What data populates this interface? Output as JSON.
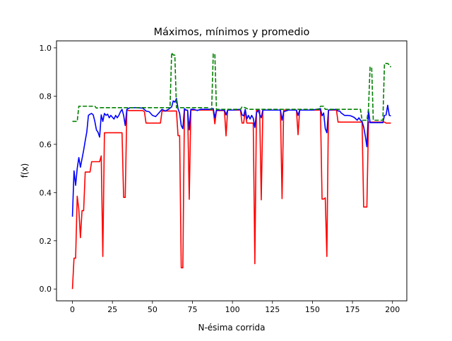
{
  "chart_data": {
    "type": "line",
    "title": "Máximos, mínimos y promedio",
    "xlabel": "N-ésima corrida",
    "ylabel": "f(x)",
    "xlim": [
      -9.95,
      208.95
    ],
    "ylim": [
      -0.049,
      1.029
    ],
    "xticks": [
      "0",
      "25",
      "50",
      "75",
      "100",
      "125",
      "150",
      "175",
      "200"
    ],
    "yticks": [
      "0.0",
      "0.2",
      "0.4",
      "0.6",
      "0.8",
      "1.0"
    ],
    "grid": false,
    "series": [
      {
        "color": "#ff0000",
        "dash": "solid",
        "points": [
          [
            0,
            0.0
          ],
          [
            1,
            0.128
          ],
          [
            2,
            0.128
          ],
          [
            3,
            0.385
          ],
          [
            4,
            0.33
          ],
          [
            5,
            0.213
          ],
          [
            6,
            0.325
          ],
          [
            7,
            0.325
          ],
          [
            8,
            0.485
          ],
          [
            9,
            0.485
          ],
          [
            10,
            0.485
          ],
          [
            11,
            0.485
          ],
          [
            12,
            0.528
          ],
          [
            13,
            0.528
          ],
          [
            14,
            0.528
          ],
          [
            15,
            0.528
          ],
          [
            16,
            0.528
          ],
          [
            17,
            0.528
          ],
          [
            18,
            0.552
          ],
          [
            19,
            0.135
          ],
          [
            20,
            0.648
          ],
          [
            21,
            0.648
          ],
          [
            22,
            0.648
          ],
          [
            23,
            0.648
          ],
          [
            24,
            0.648
          ],
          [
            25,
            0.648
          ],
          [
            26,
            0.648
          ],
          [
            27,
            0.648
          ],
          [
            28,
            0.648
          ],
          [
            29,
            0.648
          ],
          [
            30,
            0.648
          ],
          [
            31,
            0.648
          ],
          [
            32,
            0.38
          ],
          [
            33,
            0.38
          ],
          [
            34,
            0.742
          ],
          [
            35,
            0.74
          ],
          [
            40,
            0.74
          ],
          [
            44,
            0.74
          ],
          [
            45,
            0.735
          ],
          [
            46,
            0.688
          ],
          [
            50,
            0.688
          ],
          [
            55,
            0.688
          ],
          [
            56,
            0.738
          ],
          [
            60,
            0.738
          ],
          [
            65,
            0.738
          ],
          [
            66,
            0.636
          ],
          [
            67,
            0.636
          ],
          [
            68,
            0.088
          ],
          [
            69,
            0.088
          ],
          [
            70,
            0.742
          ],
          [
            71,
            0.742
          ],
          [
            72,
            0.742
          ],
          [
            73,
            0.372
          ],
          [
            74,
            0.742
          ],
          [
            80,
            0.742
          ],
          [
            85,
            0.742
          ],
          [
            88,
            0.742
          ],
          [
            89,
            0.685
          ],
          [
            90,
            0.74
          ],
          [
            95,
            0.74
          ],
          [
            96,
            0.635
          ],
          [
            97,
            0.742
          ],
          [
            100,
            0.742
          ],
          [
            105,
            0.742
          ],
          [
            106,
            0.688
          ],
          [
            107,
            0.688
          ],
          [
            108,
            0.74
          ],
          [
            109,
            0.688
          ],
          [
            110,
            0.688
          ],
          [
            111,
            0.688
          ],
          [
            112,
            0.688
          ],
          [
            113,
            0.688
          ],
          [
            114,
            0.105
          ],
          [
            115,
            0.742
          ],
          [
            117,
            0.742
          ],
          [
            118,
            0.37
          ],
          [
            119,
            0.742
          ],
          [
            125,
            0.742
          ],
          [
            130,
            0.742
          ],
          [
            131,
            0.375
          ],
          [
            132,
            0.742
          ],
          [
            135,
            0.742
          ],
          [
            140,
            0.742
          ],
          [
            141,
            0.64
          ],
          [
            142,
            0.742
          ],
          [
            150,
            0.742
          ],
          [
            155,
            0.742
          ],
          [
            156,
            0.373
          ],
          [
            157,
            0.373
          ],
          [
            158,
            0.378
          ],
          [
            159,
            0.135
          ],
          [
            160,
            0.742
          ],
          [
            164,
            0.742
          ],
          [
            165,
            0.742
          ],
          [
            166,
            0.692
          ],
          [
            170,
            0.692
          ],
          [
            175,
            0.692
          ],
          [
            179,
            0.692
          ],
          [
            180,
            0.692
          ],
          [
            181,
            0.692
          ],
          [
            182,
            0.34
          ],
          [
            183,
            0.34
          ],
          [
            184,
            0.34
          ],
          [
            185,
            0.692
          ],
          [
            190,
            0.692
          ],
          [
            195,
            0.692
          ],
          [
            196,
            0.688
          ],
          [
            199,
            0.688
          ]
        ]
      },
      {
        "color": "#0000ff",
        "dash": "solid",
        "points": [
          [
            0,
            0.3
          ],
          [
            1,
            0.49
          ],
          [
            2,
            0.43
          ],
          [
            3,
            0.5
          ],
          [
            4,
            0.545
          ],
          [
            5,
            0.505
          ],
          [
            6,
            0.54
          ],
          [
            7,
            0.575
          ],
          [
            8,
            0.615
          ],
          [
            9,
            0.652
          ],
          [
            10,
            0.72
          ],
          [
            11,
            0.725
          ],
          [
            12,
            0.728
          ],
          [
            13,
            0.722
          ],
          [
            14,
            0.695
          ],
          [
            15,
            0.66
          ],
          [
            16,
            0.65
          ],
          [
            17,
            0.63
          ],
          [
            18,
            0.722
          ],
          [
            19,
            0.695
          ],
          [
            20,
            0.728
          ],
          [
            21,
            0.72
          ],
          [
            22,
            0.725
          ],
          [
            23,
            0.71
          ],
          [
            24,
            0.72
          ],
          [
            25,
            0.712
          ],
          [
            26,
            0.705
          ],
          [
            27,
            0.72
          ],
          [
            28,
            0.71
          ],
          [
            29,
            0.72
          ],
          [
            30,
            0.735
          ],
          [
            31,
            0.745
          ],
          [
            32,
            0.72
          ],
          [
            33,
            0.678
          ],
          [
            34,
            0.745
          ],
          [
            36,
            0.752
          ],
          [
            40,
            0.752
          ],
          [
            44,
            0.75
          ],
          [
            46,
            0.738
          ],
          [
            48,
            0.735
          ],
          [
            50,
            0.72
          ],
          [
            52,
            0.715
          ],
          [
            54,
            0.73
          ],
          [
            56,
            0.745
          ],
          [
            58,
            0.738
          ],
          [
            60,
            0.745
          ],
          [
            62,
            0.755
          ],
          [
            63,
            0.78
          ],
          [
            64,
            0.775
          ],
          [
            65,
            0.79
          ],
          [
            66,
            0.748
          ],
          [
            67,
            0.728
          ],
          [
            68,
            0.678
          ],
          [
            69,
            0.665
          ],
          [
            70,
            0.748
          ],
          [
            71,
            0.742
          ],
          [
            72,
            0.74
          ],
          [
            73,
            0.66
          ],
          [
            74,
            0.745
          ],
          [
            76,
            0.745
          ],
          [
            78,
            0.74
          ],
          [
            80,
            0.745
          ],
          [
            85,
            0.745
          ],
          [
            88,
            0.748
          ],
          [
            89,
            0.71
          ],
          [
            90,
            0.742
          ],
          [
            95,
            0.742
          ],
          [
            96,
            0.722
          ],
          [
            97,
            0.742
          ],
          [
            100,
            0.742
          ],
          [
            105,
            0.745
          ],
          [
            106,
            0.722
          ],
          [
            107,
            0.718
          ],
          [
            108,
            0.745
          ],
          [
            109,
            0.705
          ],
          [
            110,
            0.72
          ],
          [
            111,
            0.705
          ],
          [
            112,
            0.72
          ],
          [
            113,
            0.708
          ],
          [
            114,
            0.67
          ],
          [
            115,
            0.73
          ],
          [
            116,
            0.742
          ],
          [
            117,
            0.725
          ],
          [
            118,
            0.71
          ],
          [
            119,
            0.742
          ],
          [
            125,
            0.742
          ],
          [
            130,
            0.742
          ],
          [
            131,
            0.7
          ],
          [
            132,
            0.735
          ],
          [
            135,
            0.742
          ],
          [
            140,
            0.742
          ],
          [
            141,
            0.72
          ],
          [
            142,
            0.742
          ],
          [
            150,
            0.742
          ],
          [
            155,
            0.748
          ],
          [
            156,
            0.718
          ],
          [
            157,
            0.73
          ],
          [
            158,
            0.665
          ],
          [
            159,
            0.648
          ],
          [
            160,
            0.742
          ],
          [
            165,
            0.745
          ],
          [
            166,
            0.738
          ],
          [
            167,
            0.738
          ],
          [
            168,
            0.73
          ],
          [
            170,
            0.72
          ],
          [
            172,
            0.72
          ],
          [
            174,
            0.718
          ],
          [
            176,
            0.712
          ],
          [
            178,
            0.7
          ],
          [
            179,
            0.71
          ],
          [
            180,
            0.7
          ],
          [
            181,
            0.695
          ],
          [
            182,
            0.672
          ],
          [
            183,
            0.635
          ],
          [
            184,
            0.59
          ],
          [
            185,
            0.74
          ],
          [
            186,
            0.69
          ],
          [
            190,
            0.69
          ],
          [
            194,
            0.69
          ],
          [
            195,
            0.72
          ],
          [
            196,
            0.722
          ],
          [
            197,
            0.762
          ],
          [
            198,
            0.72
          ],
          [
            199,
            0.718
          ]
        ]
      },
      {
        "color": "#008000",
        "dash": "dashed",
        "points": [
          [
            0,
            0.695
          ],
          [
            2,
            0.695
          ],
          [
            3,
            0.695
          ],
          [
            4,
            0.758
          ],
          [
            10,
            0.758
          ],
          [
            14,
            0.758
          ],
          [
            15,
            0.75
          ],
          [
            17,
            0.752
          ],
          [
            20,
            0.752
          ],
          [
            25,
            0.752
          ],
          [
            30,
            0.752
          ],
          [
            35,
            0.752
          ],
          [
            40,
            0.752
          ],
          [
            45,
            0.752
          ],
          [
            50,
            0.752
          ],
          [
            55,
            0.752
          ],
          [
            60,
            0.752
          ],
          [
            61,
            0.752
          ],
          [
            62,
            0.98
          ],
          [
            63,
            0.97
          ],
          [
            64,
            0.97
          ],
          [
            65,
            0.752
          ],
          [
            70,
            0.752
          ],
          [
            80,
            0.752
          ],
          [
            85,
            0.752
          ],
          [
            86,
            0.745
          ],
          [
            87,
            0.745
          ],
          [
            88,
            0.975
          ],
          [
            89,
            0.975
          ],
          [
            90,
            0.745
          ],
          [
            95,
            0.745
          ],
          [
            100,
            0.745
          ],
          [
            105,
            0.745
          ],
          [
            106,
            0.755
          ],
          [
            108,
            0.752
          ],
          [
            110,
            0.745
          ],
          [
            115,
            0.745
          ],
          [
            120,
            0.745
          ],
          [
            125,
            0.745
          ],
          [
            130,
            0.745
          ],
          [
            135,
            0.745
          ],
          [
            140,
            0.745
          ],
          [
            145,
            0.745
          ],
          [
            150,
            0.745
          ],
          [
            154,
            0.745
          ],
          [
            155,
            0.758
          ],
          [
            157,
            0.758
          ],
          [
            158,
            0.745
          ],
          [
            165,
            0.745
          ],
          [
            170,
            0.745
          ],
          [
            175,
            0.745
          ],
          [
            178,
            0.745
          ],
          [
            179,
            0.745
          ],
          [
            180,
            0.745
          ],
          [
            181,
            0.7
          ],
          [
            182,
            0.7
          ],
          [
            184,
            0.7
          ],
          [
            185,
            0.745
          ],
          [
            186,
            0.92
          ],
          [
            187,
            0.92
          ],
          [
            188,
            0.7
          ],
          [
            190,
            0.7
          ],
          [
            193,
            0.7
          ],
          [
            194,
            0.7
          ],
          [
            195,
            0.935
          ],
          [
            197,
            0.935
          ],
          [
            198,
            0.93
          ],
          [
            199,
            0.92
          ]
        ]
      }
    ]
  }
}
